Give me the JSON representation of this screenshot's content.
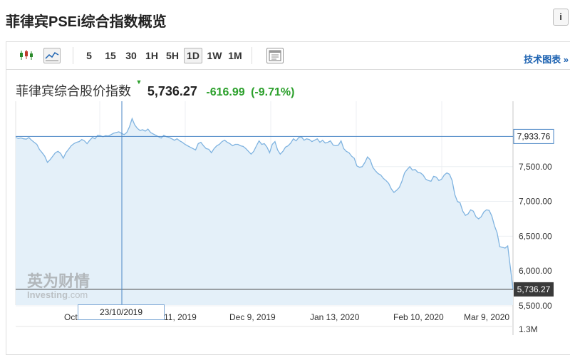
{
  "page": {
    "title": "菲律宾PSEi综合指数概览",
    "info_icon": "i"
  },
  "toolbar": {
    "chart_type_icons": [
      "candlestick-icon",
      "line-chart-icon"
    ],
    "timeframes": [
      "5",
      "15",
      "30",
      "1H",
      "5H",
      "1D",
      "1W",
      "1M"
    ],
    "active_timeframe": "1D",
    "settings_icon": "chart-settings-icon",
    "tech_chart_link": "技术图表 »"
  },
  "quote": {
    "name": "菲律宾综合股价指数",
    "last": "5,736.27",
    "change": "-616.99",
    "change_pct": "(-9.71%)",
    "down_color": "#2ca02c"
  },
  "watermark": {
    "cn": "英为财情",
    "en": "Investing",
    "suffix": ".com"
  },
  "crosshair": {
    "date_label": "23/10/2019",
    "price_label": "7,933.76"
  },
  "last_price_label": "5,736.27",
  "volume_label": "1.3M",
  "chart_data": {
    "type": "area",
    "series": [
      {
        "values": [
          7920,
          7905,
          7912,
          7900,
          7895,
          7918,
          7880,
          7850,
          7820,
          7745,
          7700,
          7650,
          7560,
          7600,
          7650,
          7700,
          7720,
          7690,
          7620,
          7700,
          7750,
          7800,
          7830,
          7850,
          7860,
          7890,
          7870,
          7830,
          7880,
          7920,
          7900,
          7950,
          7945,
          7930,
          7945,
          7940,
          7960,
          7980,
          7990,
          8000,
          7980,
          7960,
          7990,
          8070,
          8190,
          8100,
          8050,
          8020,
          8030,
          8010,
          8040,
          7990,
          7970,
          7950,
          7930,
          7910,
          7950,
          7930,
          7920,
          7900,
          7880,
          7900,
          7870,
          7850,
          7820,
          7800,
          7780,
          7760,
          7740,
          7830,
          7850,
          7800,
          7760,
          7750,
          7700,
          7760,
          7800,
          7820,
          7860,
          7880,
          7850,
          7830,
          7800,
          7820,
          7820,
          7800,
          7790,
          7760,
          7720,
          7680,
          7720,
          7800,
          7870,
          7820,
          7830,
          7780,
          7700,
          7820,
          7860,
          7740,
          7680,
          7720,
          7780,
          7800,
          7840,
          7900,
          7870,
          7920,
          7930,
          7880,
          7900,
          7890,
          7860,
          7880,
          7900,
          7850,
          7880,
          7840,
          7850,
          7870,
          7810,
          7800,
          7810,
          7870,
          7760,
          7720,
          7700,
          7650,
          7620,
          7510,
          7490,
          7500,
          7560,
          7640,
          7600,
          7490,
          7440,
          7400,
          7380,
          7330,
          7300,
          7260,
          7180,
          7130,
          7160,
          7200,
          7290,
          7410,
          7460,
          7500,
          7450,
          7460,
          7420,
          7410,
          7380,
          7320,
          7300,
          7290,
          7360,
          7350,
          7300,
          7320,
          7380,
          7410,
          7390,
          7300,
          7100,
          7000,
          6980,
          6860,
          6800,
          6820,
          6880,
          6860,
          6780,
          6750,
          6780,
          6850,
          6880,
          6870,
          6790,
          6650,
          6550,
          6350,
          6340,
          6330,
          6360,
          6050,
          5736.27
        ]
      }
    ],
    "x_tick_labels": [
      "Oct",
      "11, 2019",
      "Dec 9, 2019",
      "Jan 13, 2020",
      "Feb 10, 2020",
      "Mar 9, 2020"
    ],
    "y_ticks": [
      7500,
      7000,
      6500,
      6000,
      5500
    ],
    "y_tick_labels": [
      "7,500.00",
      "7,000.00",
      "6,500.00",
      "6,000.00",
      "5,500.00"
    ],
    "ylim": [
      5510,
      8440
    ],
    "reference_lines": [
      7933.76,
      5736.27
    ],
    "grid": true,
    "line_color": "#7fb3e0",
    "fill_color": "#e4f0f9"
  }
}
